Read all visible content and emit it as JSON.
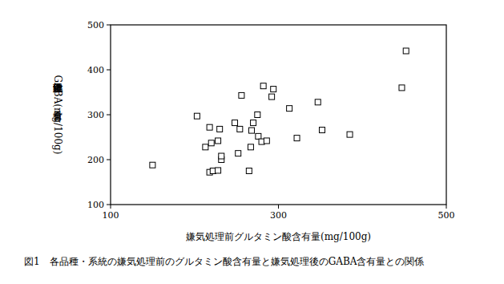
{
  "chart_data": {
    "type": "scatter",
    "title": "図1　各品種・系統の嫌気処理前のグルタミン酸含有量と嫌気処理後のGABA含有量との関係",
    "x_label": "嫌気処理前グルタミン酸含有量(mg/100g)",
    "y_label": "嫌気処理後GABA含有量(mg/100g)",
    "xlim": [
      100,
      500
    ],
    "ylim": [
      100,
      500
    ],
    "xticks": [
      100,
      300,
      500
    ],
    "yticks": [
      100,
      200,
      300,
      400,
      500
    ],
    "marker": "square",
    "color": "#000000",
    "x": [
      150,
      203,
      213,
      218,
      220,
      218,
      222,
      228,
      228,
      230,
      232,
      232,
      248,
      252,
      254,
      256,
      265,
      267,
      268,
      270,
      275,
      276,
      280,
      282,
      286,
      292,
      294,
      313,
      322,
      347,
      352,
      385,
      447,
      452
    ],
    "values": [
      188,
      297,
      228,
      272,
      237,
      172,
      175,
      176,
      242,
      268,
      200,
      208,
      282,
      214,
      268,
      343,
      175,
      228,
      265,
      282,
      300,
      252,
      240,
      364,
      242,
      340,
      357,
      314,
      248,
      328,
      266,
      256,
      360,
      442
    ]
  }
}
